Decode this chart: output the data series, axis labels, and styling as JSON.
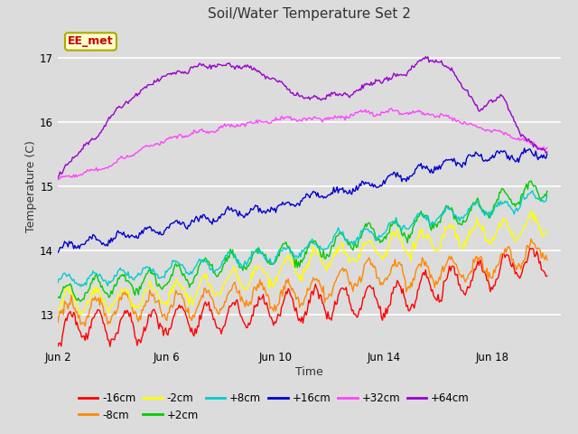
{
  "title": "Soil/Water Temperature Set 2",
  "xlabel": "Time",
  "ylabel": "Temperature (C)",
  "ylim": [
    12.5,
    17.5
  ],
  "xlim": [
    0,
    18.5
  ],
  "x_ticks_labels": [
    "Jun 2",
    "Jun 6",
    "Jun 10",
    "Jun 14",
    "Jun 18"
  ],
  "x_ticks_pos": [
    0,
    4,
    8,
    12,
    16
  ],
  "bg_color": "#dcdcdc",
  "annotation_text": "EE_met",
  "annotation_bg": "#ffffcc",
  "annotation_border": "#aaaa00",
  "annotation_text_color": "#cc0000",
  "series": [
    {
      "label": "-16cm",
      "color": "#ff0000"
    },
    {
      "label": "-8cm",
      "color": "#ff8800"
    },
    {
      "label": "-2cm",
      "color": "#ffff00"
    },
    {
      "label": "+2cm",
      "color": "#00cc00"
    },
    {
      "label": "+8cm",
      "color": "#00cccc"
    },
    {
      "label": "+16cm",
      "color": "#0000cc"
    },
    {
      "label": "+32cm",
      "color": "#ff44ff"
    },
    {
      "label": "+64cm",
      "color": "#9900cc"
    }
  ]
}
